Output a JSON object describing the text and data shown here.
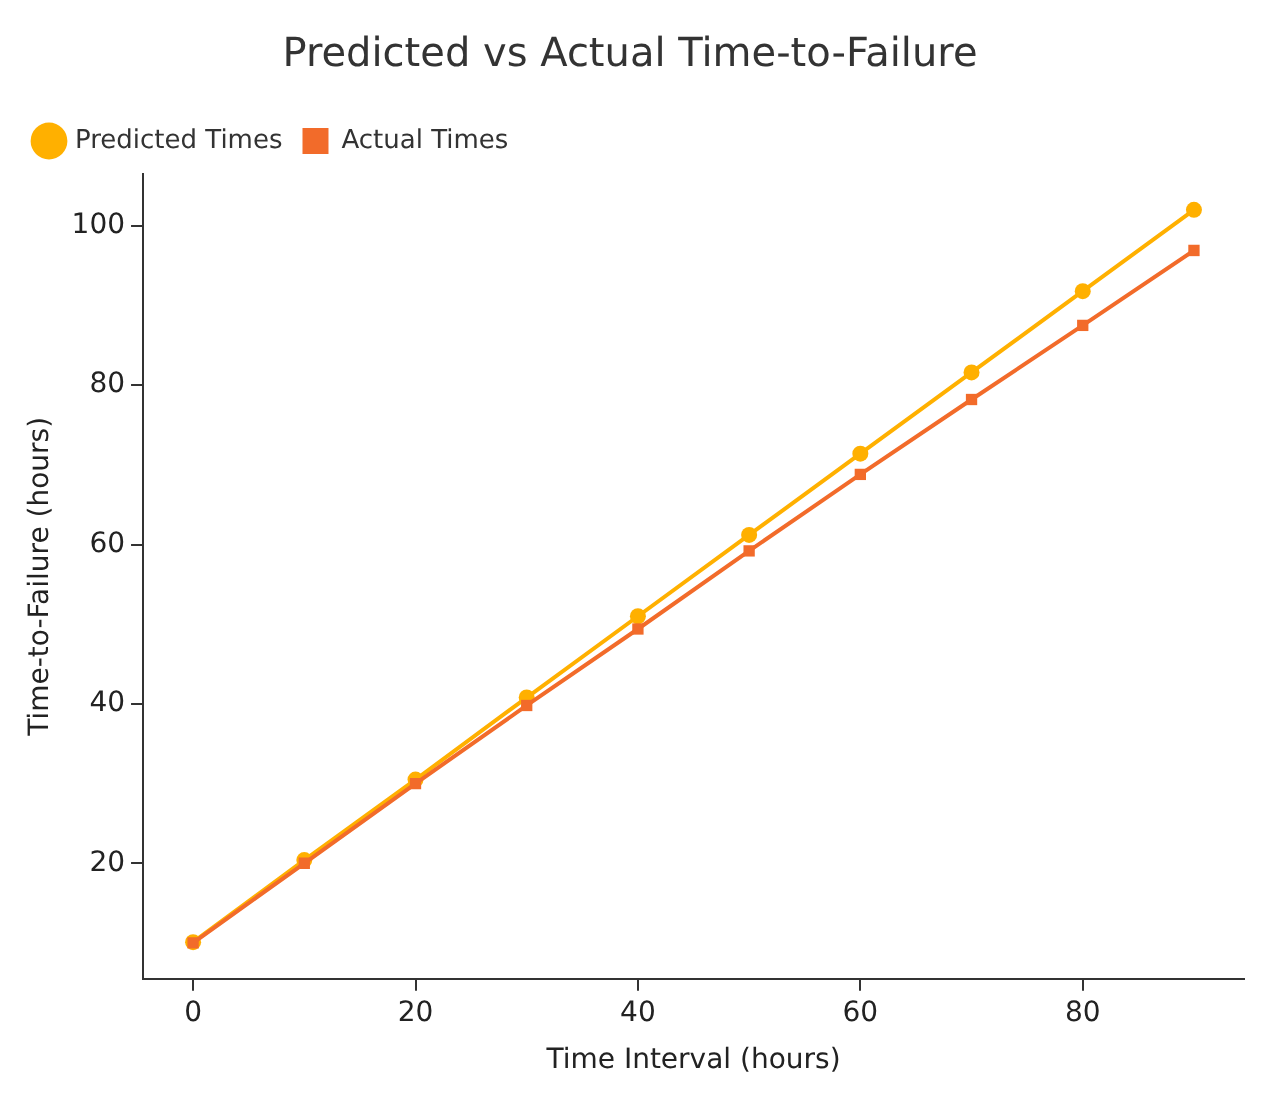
{
  "chart_data": {
    "type": "line",
    "title": "Predicted vs Actual Time-to-Failure",
    "xlabel": "Time Interval (hours)",
    "ylabel": "Time-to-Failure (hours)",
    "x": [
      0,
      10,
      20,
      30,
      40,
      50,
      60,
      70,
      80,
      90
    ],
    "series": [
      {
        "name": "Predicted Times",
        "color": "#ffb000",
        "marker": "circle",
        "values": [
          10.1,
          20.4,
          30.5,
          40.8,
          51.0,
          61.2,
          71.4,
          81.6,
          91.8,
          102.0
        ]
      },
      {
        "name": "Actual Times",
        "color": "#f26b2a",
        "marker": "square",
        "values": [
          10.0,
          20.0,
          30.0,
          39.8,
          49.4,
          59.2,
          68.8,
          78.2,
          87.5,
          96.9
        ]
      }
    ],
    "xlim": [
      -4.5,
      94.5
    ],
    "xticks": [
      0,
      20,
      40,
      60,
      80
    ],
    "ylim": [
      5.5,
      106.5
    ],
    "yticks": [
      20,
      40,
      60,
      80,
      100
    ],
    "grid": false,
    "legend": "top left",
    "line_style": "solid"
  }
}
